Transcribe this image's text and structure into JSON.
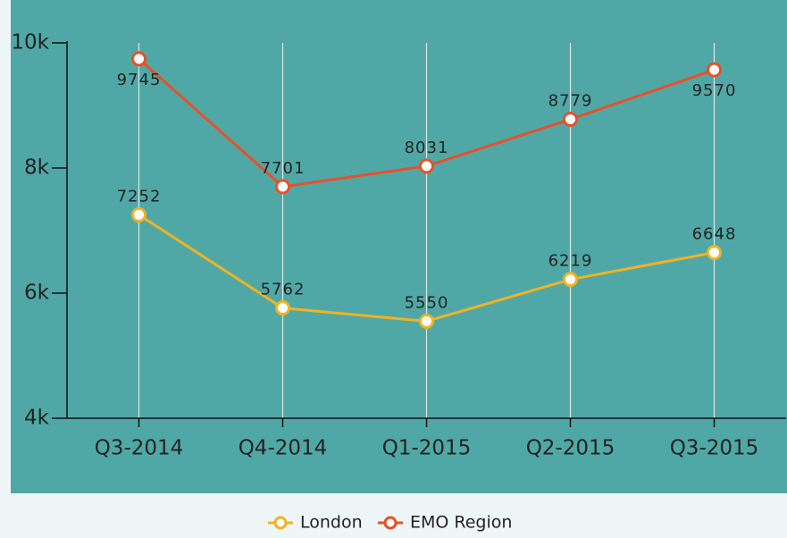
{
  "chart_data": {
    "type": "line",
    "categories": [
      "Q3-2014",
      "Q4-2014",
      "Q1-2015",
      "Q2-2015",
      "Q3-2015"
    ],
    "series": [
      {
        "name": "London",
        "color": "#f0b323",
        "values": [
          7252,
          5762,
          5550,
          6219,
          6648
        ]
      },
      {
        "name": "EMO Region",
        "color": "#e8502a",
        "values": [
          9745,
          7701,
          8031,
          8779,
          9570
        ]
      }
    ],
    "ylim": [
      4000,
      10000
    ],
    "yticks": [
      {
        "value": 4000,
        "label": "4k"
      },
      {
        "value": 6000,
        "label": "6k"
      },
      {
        "value": 8000,
        "label": "8k"
      },
      {
        "value": 10000,
        "label": "10k"
      }
    ],
    "grid": true,
    "legend": "bottom"
  }
}
